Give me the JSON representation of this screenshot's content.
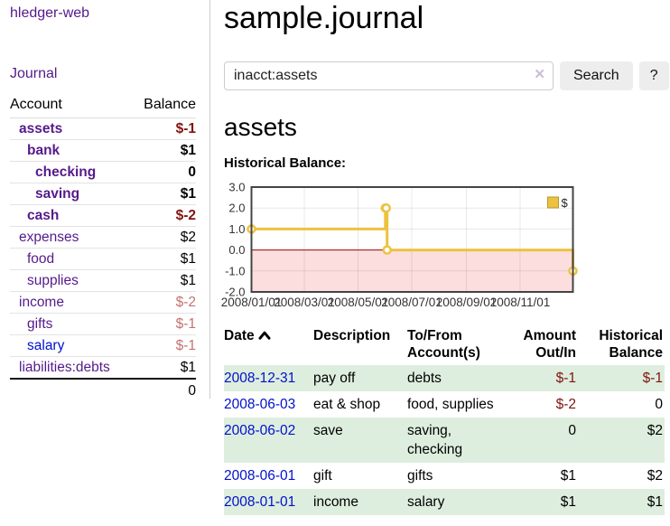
{
  "sidebar": {
    "brand": "hledger-web",
    "journal_label": "Journal",
    "accounts_table": {
      "headers": {
        "account": "Account",
        "balance": "Balance"
      },
      "rows": [
        {
          "name": "assets",
          "indent": 1,
          "bold": true,
          "balance": "$-1",
          "balance_style": "neg-strong"
        },
        {
          "name": "bank",
          "indent": 2,
          "bold": true,
          "balance": "$1",
          "balance_style": "pos"
        },
        {
          "name": "checking",
          "indent": 3,
          "bold": true,
          "balance": "0",
          "balance_style": "pos"
        },
        {
          "name": "saving",
          "indent": 3,
          "bold": true,
          "balance": "$1",
          "balance_style": "pos"
        },
        {
          "name": "cash",
          "indent": 2,
          "bold": true,
          "balance": "$-2",
          "balance_style": "neg-strong"
        },
        {
          "name": "expenses",
          "indent": 1,
          "bold": false,
          "balance": "$2",
          "balance_style": "pos"
        },
        {
          "name": "food",
          "indent": 2,
          "bold": false,
          "balance": "$1",
          "balance_style": "pos"
        },
        {
          "name": "supplies",
          "indent": 2,
          "bold": false,
          "balance": "$1",
          "balance_style": "pos"
        },
        {
          "name": "income",
          "indent": 1,
          "bold": false,
          "balance": "$-2",
          "balance_style": "neg"
        },
        {
          "name": "gifts",
          "indent": 2,
          "bold": false,
          "balance": "$-1",
          "balance_style": "neg"
        },
        {
          "name": "salary",
          "indent": 2,
          "bold": false,
          "balance": "$-1",
          "balance_style": "neg",
          "link_variant": "unvisited"
        },
        {
          "name": "liabilities:debts",
          "indent": 1,
          "bold": false,
          "balance": "$1",
          "balance_style": "pos"
        }
      ],
      "total": "0"
    }
  },
  "header": {
    "title": "sample.journal"
  },
  "search": {
    "value": "inacct:assets",
    "clear_icon": "✕",
    "button_label": "Search",
    "help_label": "?"
  },
  "account_page": {
    "title": "assets",
    "chart_heading": "Historical Balance:"
  },
  "chart_data": {
    "type": "line",
    "style": "steps",
    "title": "Historical Balance",
    "series": [
      {
        "name": "$",
        "color": "#edc240",
        "points": [
          [
            "2008-01-01",
            1
          ],
          [
            "2008-06-01",
            2
          ],
          [
            "2008-06-02",
            2
          ],
          [
            "2008-06-03",
            0
          ],
          [
            "2008-12-31",
            -1
          ]
        ]
      }
    ],
    "x_range": [
      "2008-01-01",
      "2008-12-31"
    ],
    "ylim": [
      -2,
      3
    ],
    "y_ticks": [
      "3.0",
      "2.0",
      "1.0",
      "0.0",
      "-1.0",
      "-2.0"
    ],
    "y_tick_values": [
      3,
      2,
      1,
      0,
      -1,
      -2
    ],
    "x_ticks": [
      "2008/01/01",
      "2008/03/01",
      "2008/05/01",
      "2008/07/01",
      "2008/09/01",
      "2008/11/01"
    ],
    "legend": {
      "label": "$",
      "position": "top-right"
    },
    "grid": true,
    "negative_region_color": "#fcdede",
    "zero_line_color": "#990000",
    "border_color": "#444444"
  },
  "register": {
    "headers": {
      "date": "Date",
      "sort_icon": "chevron-up",
      "description": "Description",
      "accounts": "To/From Account(s)",
      "amount": "Amount Out/In",
      "balance": "Historical Balance"
    },
    "rows": [
      {
        "date": "2008-12-31",
        "description": "pay off",
        "accounts": "debts",
        "amount": "$-1",
        "amount_negative": true,
        "balance": "$-1",
        "balance_negative": true,
        "shaded": true
      },
      {
        "date": "2008-06-03",
        "description": "eat & shop",
        "accounts": "food, supplies",
        "amount": "$-2",
        "amount_negative": true,
        "balance": "0",
        "balance_negative": false,
        "shaded": false
      },
      {
        "date": "2008-06-02",
        "description": "save",
        "accounts": "saving, checking",
        "amount": "0",
        "amount_negative": false,
        "balance": "$2",
        "balance_negative": false,
        "shaded": true
      },
      {
        "date": "2008-06-01",
        "description": "gift",
        "accounts": "gifts",
        "amount": "$1",
        "amount_negative": false,
        "balance": "$2",
        "balance_negative": false,
        "shaded": false
      },
      {
        "date": "2008-01-01",
        "description": "income",
        "accounts": "salary",
        "amount": "$1",
        "amount_negative": false,
        "balance": "$1",
        "balance_negative": false,
        "shaded": true
      }
    ]
  },
  "colors": {
    "link_purple": "#551a8b",
    "link_blue": "#0011cc",
    "negative_strong": "#7f1410",
    "negative_soft": "#c47272",
    "row_green": "#deeede",
    "series_yellow": "#edc240"
  }
}
